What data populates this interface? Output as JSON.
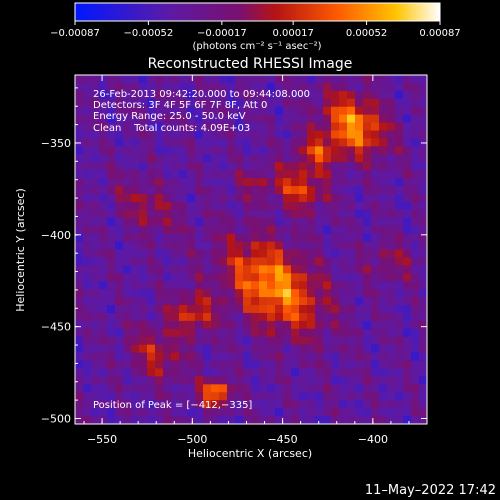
{
  "chart_data": {
    "type": "heatmap",
    "title": "Reconstructed RHESSI Image",
    "xlabel": "Heliocentric X (arcsec)",
    "ylabel": "Heliocentric Y (arcsec)",
    "xlim": [
      -565,
      -370
    ],
    "ylim": [
      -503,
      -313
    ],
    "x_ticks": [
      -550,
      -500,
      -450,
      -400
    ],
    "y_ticks": [
      -350,
      -400,
      -450,
      -500
    ],
    "x_tick_labels": [
      "−550",
      "−500",
      "−450",
      "−400"
    ],
    "y_tick_labels": [
      "−350",
      "−400",
      "−450",
      "−500"
    ],
    "colorbar": {
      "ticks": [
        -0.00087,
        -0.00052,
        -0.00017,
        0.00017,
        0.00052,
        0.00087
      ],
      "tick_labels": [
        "−0.00087",
        "−0.00052",
        "−0.00017",
        "0.00017",
        "0.00052",
        "0.00087"
      ],
      "unit_label": "(photons cm⁻² s⁻¹ asec⁻²)",
      "colors": [
        "#0018ff",
        "#5a1aa8",
        "#7a1070",
        "#b41414",
        "#ff5a00",
        "#ffc400",
        "#ffffff"
      ]
    },
    "annotations": [
      "26-Feb-2013 09:42:20.000 to 09:44:08.000",
      "Detectors: 3F 4F 5F 6F 7F 8F, Att 0",
      "Energy Range: 25.0 - 50.0 keV",
      "Clean    Total counts: 4.09E+03"
    ],
    "peak_label": "Position of Peak = [−412,−335]",
    "timestamp": "11–May–2022 17:42",
    "peak": {
      "x": -412,
      "y": -335
    },
    "background_level": -0.00035,
    "sources": [
      {
        "x": -455,
        "y": -428,
        "amplitude": 0.00087,
        "width_x": 22,
        "width_y": 14,
        "angle_deg": -40
      },
      {
        "x": -410,
        "y": -340,
        "amplitude": 0.00085,
        "width_x": 14,
        "width_y": 10,
        "angle_deg": -40
      },
      {
        "x": -440,
        "y": -375,
        "amplitude": 0.0006,
        "width_x": 10,
        "width_y": 8,
        "angle_deg": -30
      },
      {
        "x": -430,
        "y": -355,
        "amplitude": 0.00055,
        "width_x": 9,
        "width_y": 7,
        "angle_deg": 0
      },
      {
        "x": -487,
        "y": -486,
        "amplitude": 0.00087,
        "width_x": 6,
        "width_y": 5,
        "angle_deg": 0
      },
      {
        "x": -500,
        "y": -443,
        "amplitude": 0.00055,
        "width_x": 9,
        "width_y": 8,
        "angle_deg": 0
      },
      {
        "x": -520,
        "y": -465,
        "amplitude": 0.00045,
        "width_x": 12,
        "width_y": 9,
        "angle_deg": -40
      },
      {
        "x": -525,
        "y": -385,
        "amplitude": 0.00038,
        "width_x": 14,
        "width_y": 8,
        "angle_deg": -40
      },
      {
        "x": -390,
        "y": -415,
        "amplitude": 0.0003,
        "width_x": 10,
        "width_y": 8,
        "angle_deg": 0
      },
      {
        "x": -465,
        "y": -372,
        "amplitude": 0.0003,
        "width_x": 8,
        "width_y": 6,
        "angle_deg": 0
      }
    ]
  }
}
